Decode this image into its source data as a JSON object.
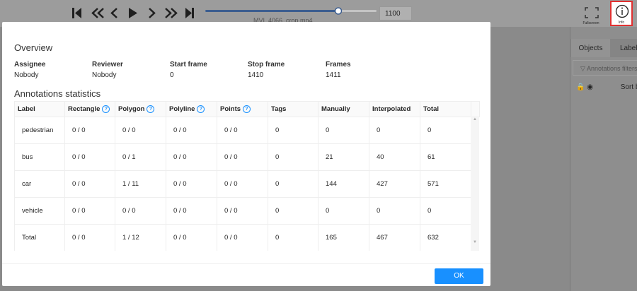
{
  "toolbar": {
    "frame": "1100",
    "filename": "MVI_4066_crop.mp4",
    "fullscreen": "Fullscreen",
    "info": "Info"
  },
  "side_panel": {
    "tabs": [
      "Objects",
      "Labels"
    ],
    "filter": "Annotations filters",
    "sort": "Sort by"
  },
  "modal": {
    "overview_title": "Overview",
    "overview": [
      {
        "label": "Assignee",
        "value": "Nobody"
      },
      {
        "label": "Reviewer",
        "value": "Nobody"
      },
      {
        "label": "Start frame",
        "value": "0"
      },
      {
        "label": "Stop frame",
        "value": "1410"
      },
      {
        "label": "Frames",
        "value": "1411"
      }
    ],
    "stats_title": "Annotations statistics",
    "table": {
      "header": [
        "Label",
        "Rectangle",
        "Polygon",
        "Polyline",
        "Points",
        "Tags",
        "Manually",
        "Interpolated",
        "Total"
      ],
      "rows": [
        [
          "pedestrian",
          "0 / 0",
          "0 / 0",
          "0 / 0",
          "0 / 0",
          "0",
          "0",
          "0",
          "0"
        ],
        [
          "bus",
          "0 / 0",
          "0 / 1",
          "0 / 0",
          "0 / 0",
          "0",
          "21",
          "40",
          "61"
        ],
        [
          "car",
          "0 / 0",
          "1 / 11",
          "0 / 0",
          "0 / 0",
          "0",
          "144",
          "427",
          "571"
        ],
        [
          "vehicle",
          "0 / 0",
          "0 / 0",
          "0 / 0",
          "0 / 0",
          "0",
          "0",
          "0",
          "0"
        ],
        [
          "Total",
          "0 / 0",
          "1 / 12",
          "0 / 0",
          "0 / 0",
          "0",
          "165",
          "467",
          "632"
        ]
      ]
    },
    "ok": "OK"
  }
}
